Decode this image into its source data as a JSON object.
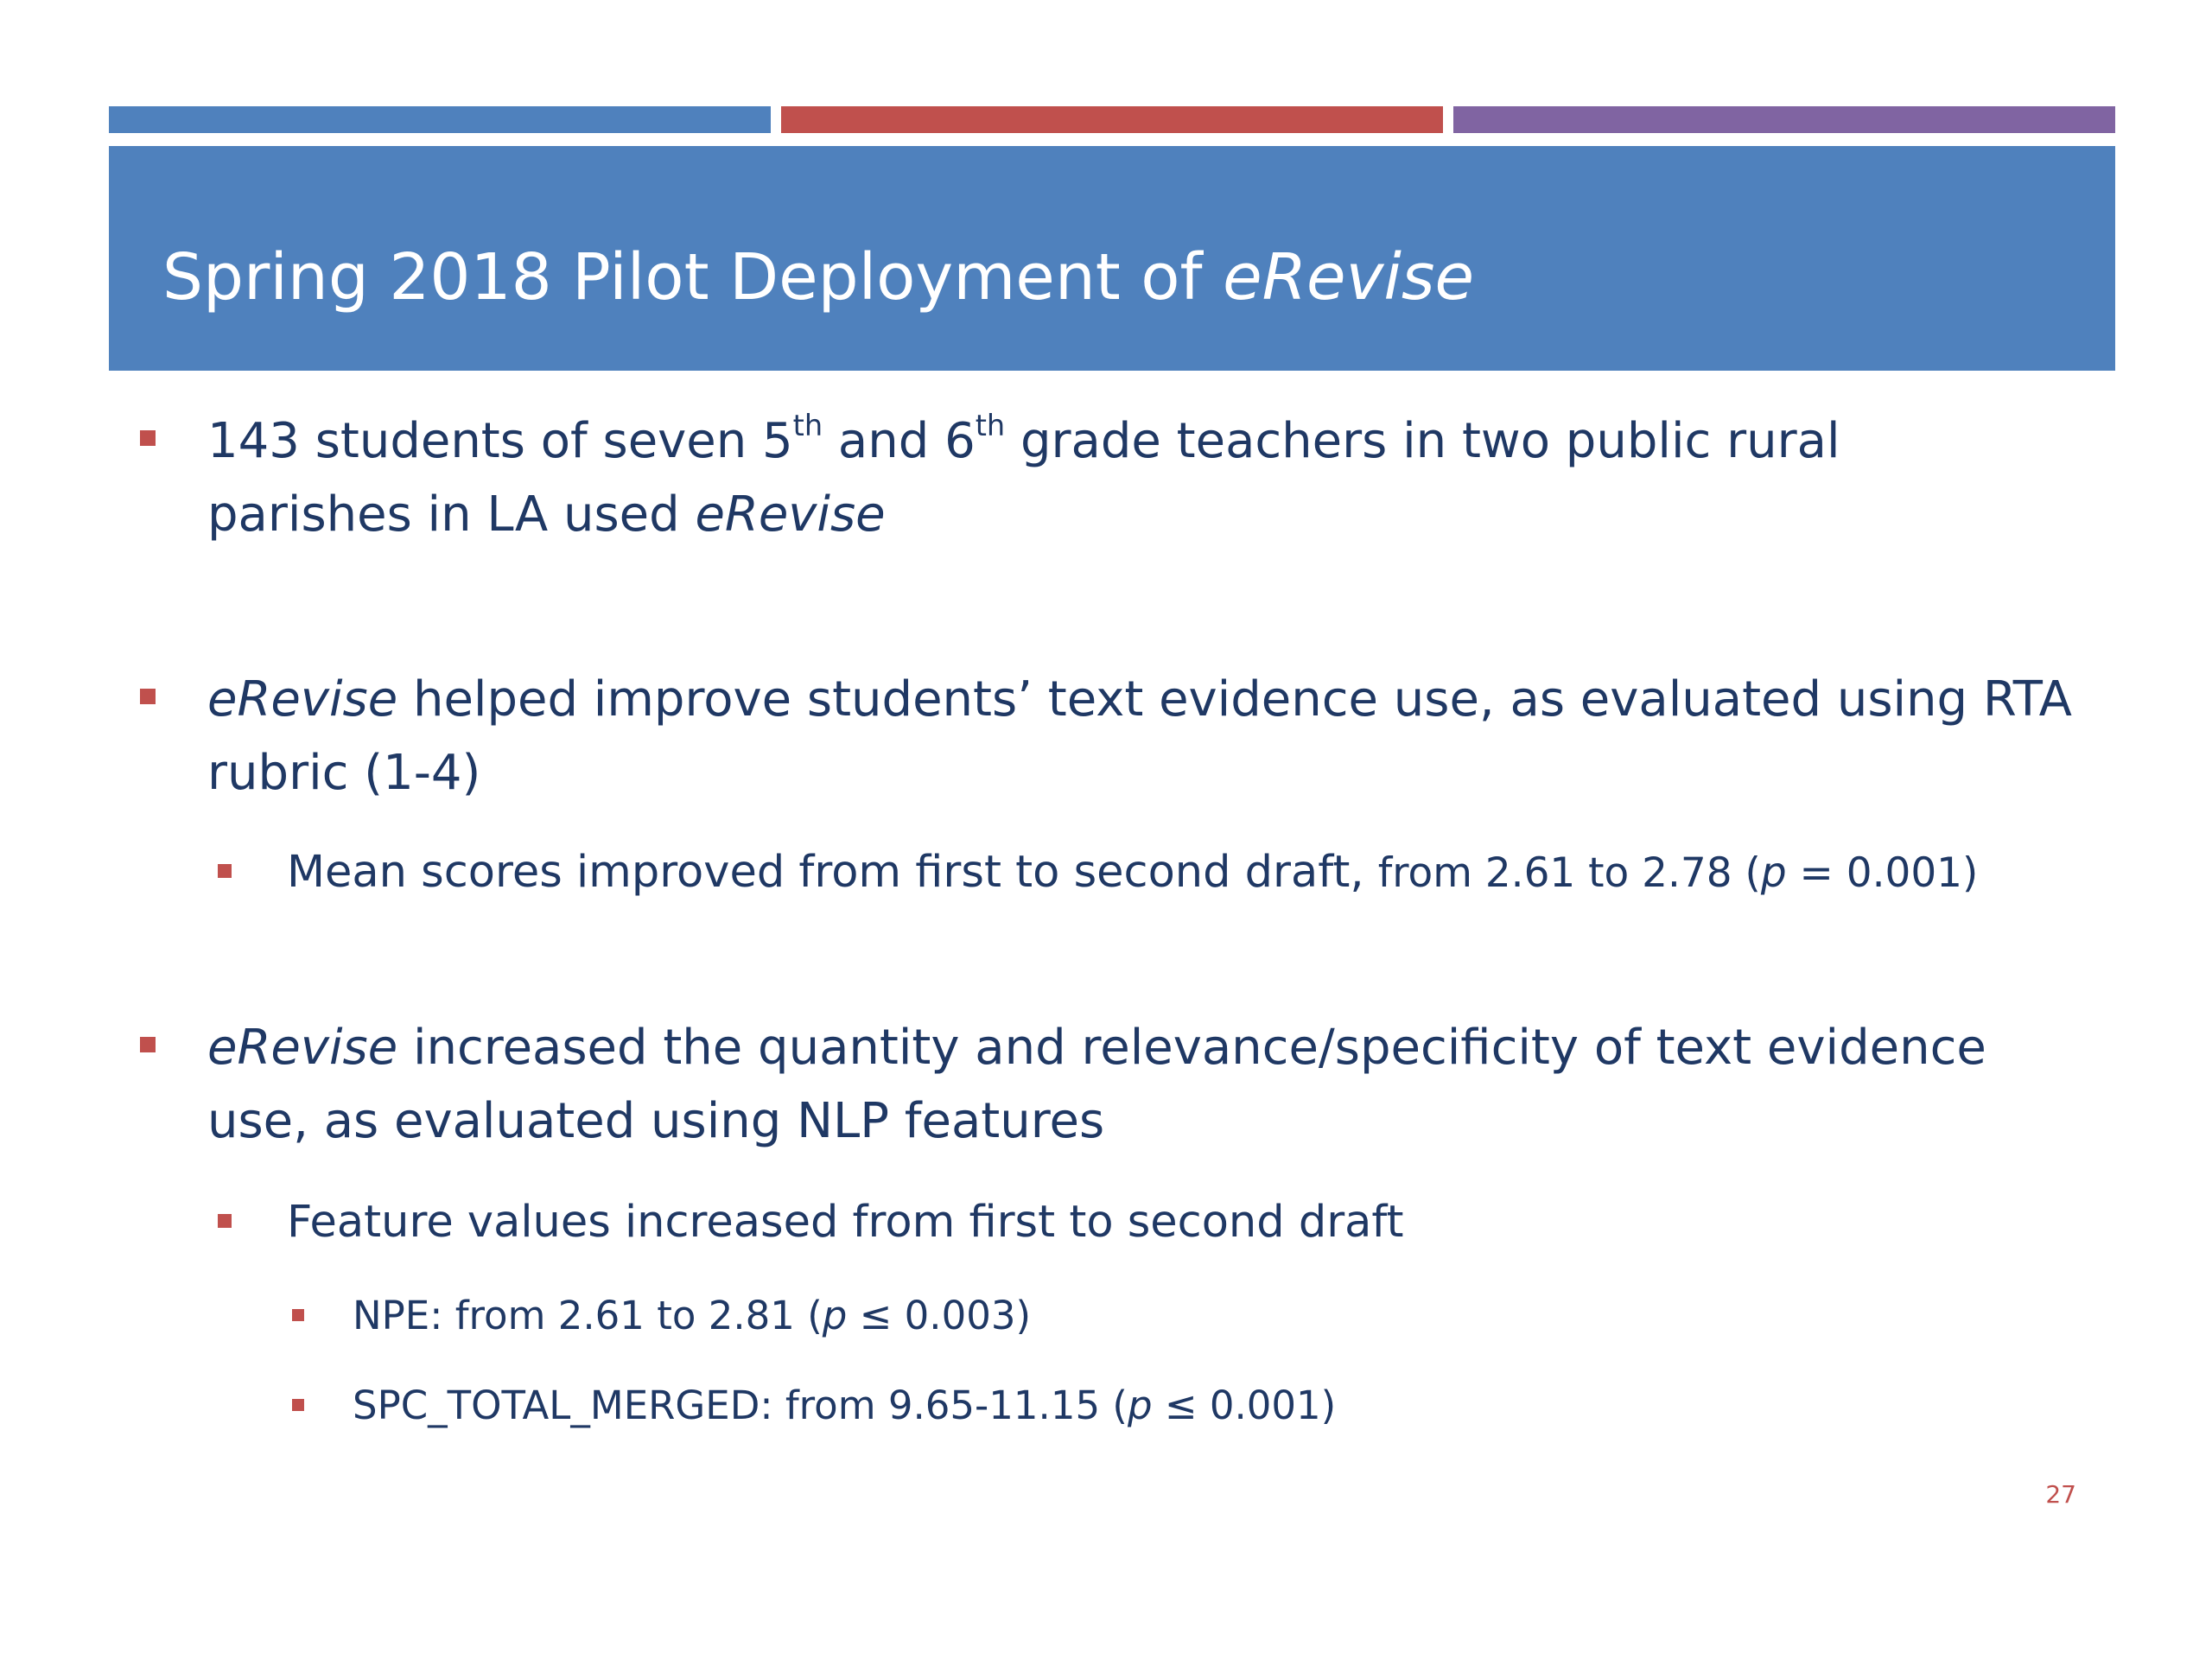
{
  "slide": {
    "title": {
      "text": "Spring 2018 Pilot Deployment of ",
      "em": "eRevise"
    },
    "b1": {
      "a": "143 students of seven 5",
      "sup1": "th",
      "b": " and 6",
      "sup2": "th",
      "c": " grade teachers in two public rural",
      "line2": "parishes in LA used ",
      "em": "eRevise"
    },
    "b2": {
      "em": "eRevise",
      "line1": " helped improve students’ text evidence use, as evaluated using RTA",
      "line2": "rubric (1-4)",
      "sub": {
        "main": "Mean scores improved from first to second draft, ",
        "small_a": "from 2.61 to 2.78 (",
        "p": "p",
        "small_b": " = 0.001)"
      }
    },
    "b3": {
      "em": "eRevise",
      "line1": " increased the quantity and relevance/specificity of text evidence",
      "line2": "use, as evaluated using NLP features",
      "sub": "Feature values increased from first to second draft",
      "subsub": [
        {
          "a": "NPE: from 2.61 to 2.81 (",
          "p": "p",
          "b": " ≤ 0.003)"
        },
        {
          "a": "SPC_TOTAL_MERGED: from 9.65-11.15 (",
          "p": "p",
          "b": " ≤ 0.001)"
        }
      ]
    },
    "page_number": "27"
  }
}
